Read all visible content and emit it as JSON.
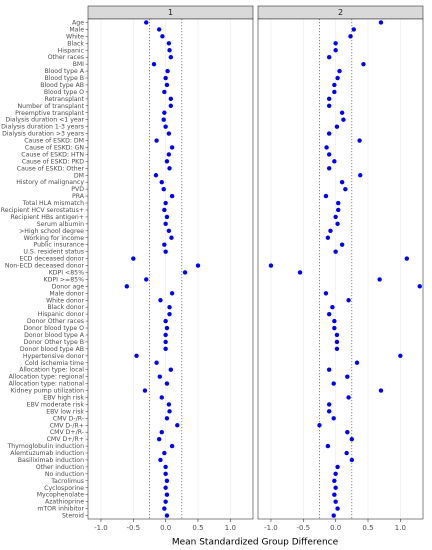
{
  "chart_data": {
    "type": "dot",
    "xlabel": "Mean Standardized Group Difference",
    "categories": [
      "Age",
      "Male",
      "White",
      "Black",
      "Hispanic",
      "Other races",
      "BMI",
      "Blood type A",
      "Blood type B",
      "Blood type AB",
      "Blood type O",
      "Retransplant",
      "Number of transplant",
      "Preemptive transplant",
      "Dialysis duration <1 year",
      "Dialysis duration 1-3 years",
      "Dialysis duration >3 years",
      "Cause of ESKD: DM",
      "Cause of ESKD: GN",
      "Cause of ESKD: HTN",
      "Cause of ESKD: PKD",
      "Cause of ESKD: Other",
      "DM",
      "History of malignancy",
      "PVD",
      "PRA",
      "Total HLA mismatch",
      "Recipient HCV serostatus+",
      "Recipient HBs antigen+",
      "Serum albumin",
      ">High school degree",
      "Working for income",
      "Public insurance",
      "U.S. resident status",
      "ECD deceased donor",
      "Non-ECD deceased donor",
      "KDPI <85%",
      "KDPI >=85%",
      "Donor age",
      "Male donor",
      "White donor",
      "Black donor",
      "Hispanic donor",
      "Donor Other races",
      "Donor blood type O",
      "Donor blood type A",
      "Donor Other type B",
      "Donor blood type AB",
      "Hypertensive donor",
      "Cold ischemia time",
      "Allocation type: local",
      "Allocation type: regional",
      "Allocation type: national",
      "Kidney pump utilization",
      "EBV high risk",
      "EBV moderate risk",
      "EBV low risk",
      "CMV D-/R-",
      "CMV D-/R+",
      "CMV D+/R-",
      "CMV D+/R+",
      "Thymoglobulin induction",
      "Alemtuzumab induction",
      "Basiliximab induction",
      "Other induction",
      "No induction",
      "Tacrolimus",
      "Cyclosporine",
      "Mycophenolate",
      "Azathioprine",
      "mTOR inhibitor",
      "Steroid"
    ],
    "series": [
      {
        "name": "1",
        "color": "#0000ff",
        "values": [
          -0.3,
          -0.1,
          -0.05,
          0.05,
          0.06,
          0.08,
          -0.18,
          0.03,
          0,
          0.02,
          -0.02,
          0.08,
          0.08,
          -0.02,
          -0.03,
          0,
          0.05,
          -0.14,
          0.1,
          0.05,
          0.02,
          0.06,
          -0.15,
          -0.06,
          -0.03,
          0.1,
          0,
          -0.02,
          0.02,
          0,
          0.05,
          0.09,
          -0.02,
          0,
          -0.5,
          0.5,
          0.3,
          -0.3,
          -0.6,
          0.1,
          -0.08,
          0.06,
          0.06,
          0,
          0.02,
          0,
          0,
          0,
          -0.45,
          -0.14,
          0.08,
          -0.09,
          0.02,
          -0.32,
          -0.06,
          0.05,
          0.06,
          0.02,
          0.18,
          -0.06,
          -0.1,
          0.1,
          -0.02,
          -0.08,
          0,
          0,
          0.02,
          0,
          0.02,
          0,
          -0.02,
          0.02
        ]
      },
      {
        "name": "2",
        "color": "#0000ff",
        "values": [
          0.7,
          0.28,
          0.23,
          0,
          0,
          -0.1,
          0.43,
          0.06,
          0.03,
          -0.02,
          -0.02,
          -0.1,
          -0.1,
          0.1,
          0.12,
          0.02,
          -0.1,
          0.37,
          -0.14,
          -0.1,
          -0.02,
          -0.1,
          0.38,
          0.1,
          0.15,
          -0.15,
          0.04,
          0.04,
          0,
          0.03,
          -0.08,
          -0.12,
          0.1,
          0,
          1.1,
          -1.0,
          -0.55,
          0.68,
          1.3,
          -0.15,
          0.2,
          -0.05,
          -0.1,
          -0.02,
          -0.02,
          0.02,
          0.02,
          0.02,
          1.0,
          0.33,
          -0.1,
          0.18,
          -0.03,
          0.7,
          0.2,
          -0.1,
          -0.1,
          -0.03,
          -0.25,
          0.18,
          0.25,
          -0.12,
          0.17,
          0.25,
          0.03,
          0,
          -0.02,
          0,
          -0.02,
          0,
          0.03,
          -0.03
        ]
      }
    ],
    "xlim": [
      -1.2,
      1.35
    ],
    "xticks": [
      {
        "value": -1,
        "label": "-1.0"
      },
      -0.5,
      {
        "value": 0,
        "label": "0.0"
      },
      0.5,
      {
        "value": 1,
        "label": "1.0"
      }
    ],
    "reference_lines": [
      -0.25,
      0.25
    ],
    "grid": true
  }
}
